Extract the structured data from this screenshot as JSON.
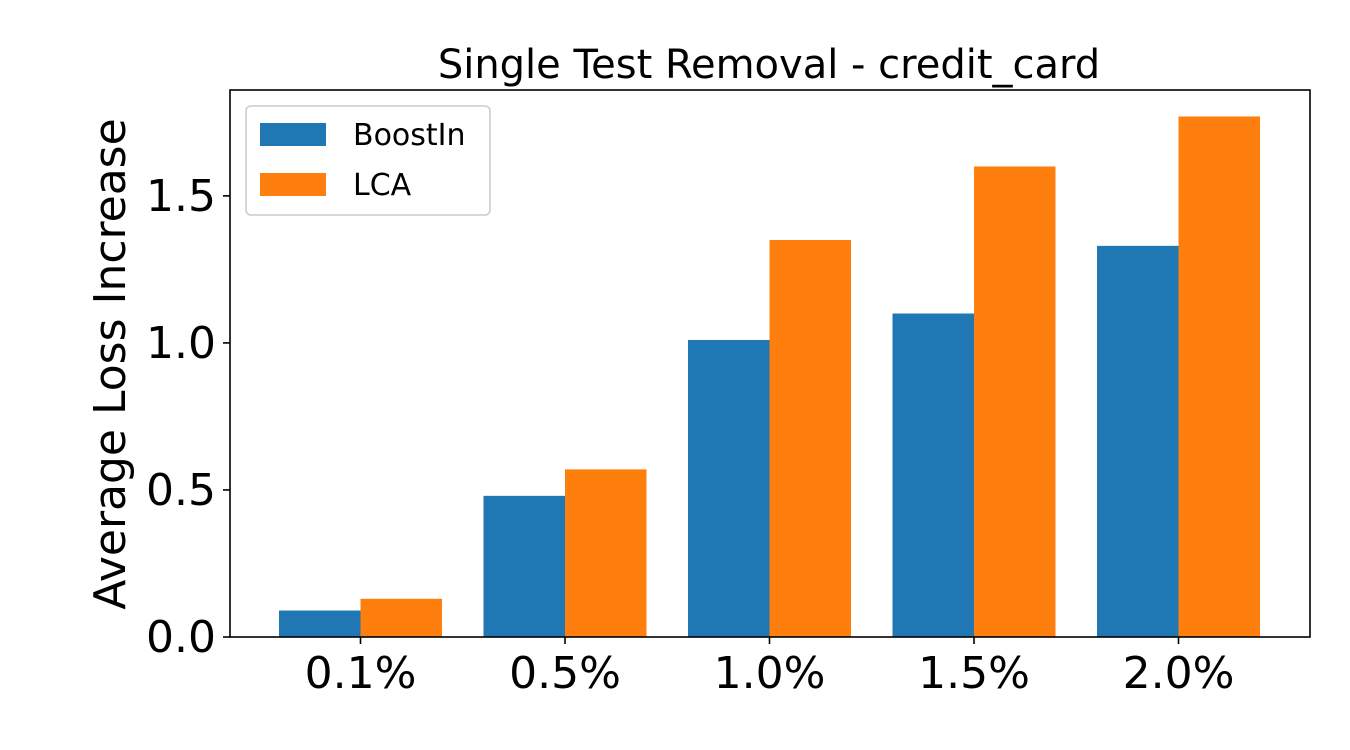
{
  "chart_data": {
    "type": "bar",
    "title": "Single Test Removal - credit_card",
    "xlabel": "",
    "ylabel": "Average Loss Increase",
    "categories": [
      "0.1%",
      "0.5%",
      "1.0%",
      "1.5%",
      "2.0%"
    ],
    "series": [
      {
        "name": "BoostIn",
        "color": "#1f77b4",
        "values": [
          0.09,
          0.48,
          1.01,
          1.1,
          1.33
        ]
      },
      {
        "name": "LCA",
        "color": "#ff7f0e",
        "values": [
          0.13,
          0.57,
          1.35,
          1.6,
          1.77
        ]
      }
    ],
    "yticks": [
      0.0,
      0.5,
      1.0,
      1.5
    ],
    "ytick_labels": [
      "0.0",
      "0.5",
      "1.0",
      "1.5"
    ],
    "ylim": [
      0,
      1.86
    ],
    "grid": false,
    "legend": "top-left"
  }
}
